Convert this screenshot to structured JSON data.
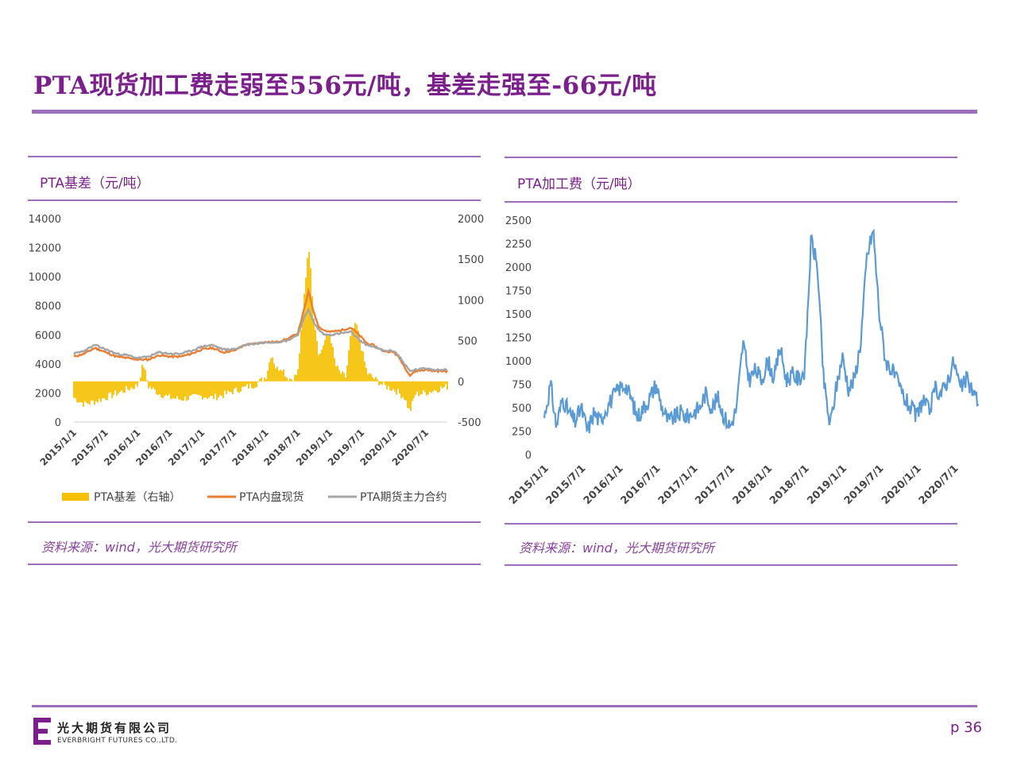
{
  "page": {
    "title": "PTA现货加工费走弱至556元/吨，基差走强至-66元/吨",
    "page_number": "p 36",
    "company_cn": "光大期货有限公司",
    "company_en": "EVERBRIGHT FUTURES CO.,LTD.",
    "brand_color": "#7b1f8c"
  },
  "left_panel": {
    "title": "PTA基差（元/吨）",
    "source": "资料来源：wind，光大期货研究所"
  },
  "right_panel": {
    "title": "PTA加工费（元/吨）",
    "source": "资料来源：wind，光大期货研究所"
  },
  "chart_data": [
    {
      "type": "bar+line",
      "title": "PTA基差（元/吨）",
      "x_tick_labels": [
        "2015/1/1",
        "2015/7/1",
        "2016/1/1",
        "2016/7/1",
        "2017/1/1",
        "2017/7/1",
        "2018/1/1",
        "2018/7/1",
        "2019/1/1",
        "2019/7/1",
        "2020/1/1",
        "2020/7/1"
      ],
      "x_range": [
        "2015/1/1",
        "2020/10/31"
      ],
      "y_left": {
        "ticks": [
          0,
          2000,
          4000,
          6000,
          8000,
          10000,
          12000,
          14000
        ],
        "range": [
          0,
          14000
        ]
      },
      "y_right": {
        "ticks": [
          -500,
          0,
          500,
          1000,
          1500,
          2000
        ],
        "range": [
          -500,
          2000
        ]
      },
      "legend_position": "bottom",
      "series": [
        {
          "name": "PTA基差（右轴）",
          "kind": "bar",
          "axis": "right",
          "color": "#f5c000",
          "points": [
            [
              "2015/1/1",
              -200
            ],
            [
              "2015/3/1",
              -280
            ],
            [
              "2015/5/1",
              -250
            ],
            [
              "2015/7/1",
              -200
            ],
            [
              "2015/9/1",
              -150
            ],
            [
              "2015/11/1",
              -100
            ],
            [
              "2016/1/1",
              -50
            ],
            [
              "2016/2/1",
              220
            ],
            [
              "2016/3/1",
              -60
            ],
            [
              "2016/5/1",
              -150
            ],
            [
              "2016/7/1",
              -200
            ],
            [
              "2016/9/1",
              -220
            ],
            [
              "2016/11/1",
              -200
            ],
            [
              "2017/1/1",
              -180
            ],
            [
              "2017/3/1",
              -200
            ],
            [
              "2017/5/1",
              -170
            ],
            [
              "2017/7/1",
              -120
            ],
            [
              "2017/9/1",
              -80
            ],
            [
              "2017/11/1",
              -40
            ],
            [
              "2018/1/1",
              60
            ],
            [
              "2018/2/1",
              350
            ],
            [
              "2018/3/1",
              150
            ],
            [
              "2018/4/1",
              180
            ],
            [
              "2018/5/1",
              50
            ],
            [
              "2018/6/1",
              30
            ],
            [
              "2018/7/1",
              100
            ],
            [
              "2018/8/1",
              900
            ],
            [
              "2018/9/1",
              1700
            ],
            [
              "2018/10/1",
              800
            ],
            [
              "2018/11/1",
              300
            ],
            [
              "2018/12/1",
              500
            ],
            [
              "2019/1/1",
              600
            ],
            [
              "2019/2/1",
              200
            ],
            [
              "2019/3/1",
              100
            ],
            [
              "2019/4/1",
              50
            ],
            [
              "2019/5/1",
              600
            ],
            [
              "2019/6/1",
              700
            ],
            [
              "2019/7/1",
              400
            ],
            [
              "2019/8/1",
              100
            ],
            [
              "2019/9/1",
              50
            ],
            [
              "2019/11/1",
              -50
            ],
            [
              "2020/1/1",
              -100
            ],
            [
              "2020/2/1",
              -150
            ],
            [
              "2020/3/1",
              -200
            ],
            [
              "2020/4/1",
              -380
            ],
            [
              "2020/5/1",
              -160
            ],
            [
              "2020/7/1",
              -140
            ],
            [
              "2020/9/1",
              -100
            ],
            [
              "2020/10/31",
              -66
            ]
          ]
        },
        {
          "name": "PTA内盘现货",
          "kind": "line",
          "axis": "left",
          "color": "#ed7d31",
          "points": [
            [
              "2015/1/1",
              4500
            ],
            [
              "2015/3/1",
              4700
            ],
            [
              "2015/5/1",
              5100
            ],
            [
              "2015/7/1",
              4800
            ],
            [
              "2015/9/1",
              4500
            ],
            [
              "2015/11/1",
              4400
            ],
            [
              "2016/1/1",
              4300
            ],
            [
              "2016/3/1",
              4300
            ],
            [
              "2016/5/1",
              4600
            ],
            [
              "2016/7/1",
              4500
            ],
            [
              "2016/9/1",
              4500
            ],
            [
              "2016/11/1",
              4700
            ],
            [
              "2017/1/1",
              5000
            ],
            [
              "2017/3/1",
              5100
            ],
            [
              "2017/5/1",
              4800
            ],
            [
              "2017/7/1",
              4900
            ],
            [
              "2017/9/1",
              5300
            ],
            [
              "2017/11/1",
              5400
            ],
            [
              "2018/1/1",
              5500
            ],
            [
              "2018/3/1",
              5500
            ],
            [
              "2018/5/1",
              5700
            ],
            [
              "2018/7/1",
              6100
            ],
            [
              "2018/8/1",
              7500
            ],
            [
              "2018/9/1",
              9000
            ],
            [
              "2018/10/1",
              7500
            ],
            [
              "2018/11/1",
              6500
            ],
            [
              "2018/12/1",
              6300
            ],
            [
              "2019/1/1",
              6200
            ],
            [
              "2019/3/1",
              6300
            ],
            [
              "2019/5/1",
              6500
            ],
            [
              "2019/7/1",
              5800
            ],
            [
              "2019/8/1",
              5400
            ],
            [
              "2019/9/1",
              5300
            ],
            [
              "2019/11/1",
              4900
            ],
            [
              "2020/1/1",
              4800
            ],
            [
              "2020/2/1",
              4400
            ],
            [
              "2020/3/1",
              3800
            ],
            [
              "2020/4/1",
              3200
            ],
            [
              "2020/5/1",
              3500
            ],
            [
              "2020/7/1",
              3600
            ],
            [
              "2020/9/1",
              3500
            ],
            [
              "2020/10/31",
              3500
            ]
          ]
        },
        {
          "name": "PTA期货主力合约",
          "kind": "line",
          "axis": "left",
          "color": "#a5a5a5",
          "points": [
            [
              "2015/1/1",
              4700
            ],
            [
              "2015/3/1",
              4900
            ],
            [
              "2015/5/1",
              5300
            ],
            [
              "2015/7/1",
              5000
            ],
            [
              "2015/9/1",
              4700
            ],
            [
              "2015/11/1",
              4600
            ],
            [
              "2016/1/1",
              4400
            ],
            [
              "2016/3/1",
              4500
            ],
            [
              "2016/5/1",
              4800
            ],
            [
              "2016/7/1",
              4700
            ],
            [
              "2016/9/1",
              4700
            ],
            [
              "2016/11/1",
              4900
            ],
            [
              "2017/1/1",
              5200
            ],
            [
              "2017/3/1",
              5300
            ],
            [
              "2017/5/1",
              5000
            ],
            [
              "2017/7/1",
              5000
            ],
            [
              "2017/9/1",
              5300
            ],
            [
              "2017/11/1",
              5400
            ],
            [
              "2018/1/1",
              5500
            ],
            [
              "2018/3/1",
              5500
            ],
            [
              "2018/5/1",
              5600
            ],
            [
              "2018/7/1",
              6000
            ],
            [
              "2018/8/1",
              7000
            ],
            [
              "2018/9/1",
              7800
            ],
            [
              "2018/10/1",
              6800
            ],
            [
              "2018/11/1",
              6300
            ],
            [
              "2018/12/1",
              6000
            ],
            [
              "2019/1/1",
              6000
            ],
            [
              "2019/3/1",
              6100
            ],
            [
              "2019/5/1",
              6200
            ],
            [
              "2019/7/1",
              5500
            ],
            [
              "2019/8/1",
              5300
            ],
            [
              "2019/9/1",
              5200
            ],
            [
              "2019/11/1",
              4900
            ],
            [
              "2020/1/1",
              4900
            ],
            [
              "2020/2/1",
              4500
            ],
            [
              "2020/3/1",
              4000
            ],
            [
              "2020/4/1",
              3500
            ],
            [
              "2020/5/1",
              3600
            ],
            [
              "2020/7/1",
              3700
            ],
            [
              "2020/9/1",
              3600
            ],
            [
              "2020/10/31",
              3600
            ]
          ]
        }
      ]
    },
    {
      "type": "line",
      "title": "PTA加工费（元/吨）",
      "x_tick_labels": [
        "2015/1/1",
        "2015/7/1",
        "2016/1/1",
        "2016/7/1",
        "2017/1/1",
        "2017/7/1",
        "2018/1/1",
        "2018/7/1",
        "2019/1/1",
        "2019/7/1",
        "2020/1/1",
        "2020/7/1"
      ],
      "x_range": [
        "2015/1/1",
        "2020/10/31"
      ],
      "y": {
        "ticks": [
          0,
          250,
          500,
          750,
          1000,
          1250,
          1500,
          1750,
          2000,
          2250,
          2500
        ],
        "range": [
          0,
          2500
        ]
      },
      "series": [
        {
          "name": "PTA加工费",
          "kind": "line",
          "color": "#5b9bd5",
          "points": [
            [
              "2015/1/1",
              400
            ],
            [
              "2015/2/1",
              750
            ],
            [
              "2015/3/1",
              300
            ],
            [
              "2015/4/1",
              600
            ],
            [
              "2015/5/1",
              450
            ],
            [
              "2015/6/1",
              350
            ],
            [
              "2015/7/1",
              500
            ],
            [
              "2015/8/1",
              250
            ],
            [
              "2015/9/1",
              450
            ],
            [
              "2015/10/1",
              350
            ],
            [
              "2015/11/1",
              500
            ],
            [
              "2015/12/1",
              600
            ],
            [
              "2016/1/1",
              700
            ],
            [
              "2016/2/1",
              750
            ],
            [
              "2016/3/1",
              600
            ],
            [
              "2016/4/1",
              400
            ],
            [
              "2016/5/1",
              500
            ],
            [
              "2016/6/1",
              600
            ],
            [
              "2016/7/1",
              750
            ],
            [
              "2016/8/1",
              500
            ],
            [
              "2016/9/1",
              350
            ],
            [
              "2016/10/1",
              400
            ],
            [
              "2016/11/1",
              450
            ],
            [
              "2016/12/1",
              400
            ],
            [
              "2017/1/1",
              450
            ],
            [
              "2017/2/1",
              500
            ],
            [
              "2017/3/1",
              650
            ],
            [
              "2017/4/1",
              500
            ],
            [
              "2017/5/1",
              600
            ],
            [
              "2017/6/1",
              400
            ],
            [
              "2017/7/1",
              300
            ],
            [
              "2017/8/1",
              500
            ],
            [
              "2017/9/1",
              1200
            ],
            [
              "2017/10/1",
              800
            ],
            [
              "2017/11/1",
              900
            ],
            [
              "2017/12/1",
              800
            ],
            [
              "2018/1/1",
              1000
            ],
            [
              "2018/2/1",
              800
            ],
            [
              "2018/3/1",
              1150
            ],
            [
              "2018/4/1",
              800
            ],
            [
              "2018/5/1",
              850
            ],
            [
              "2018/6/1",
              800
            ],
            [
              "2018/7/1",
              900
            ],
            [
              "2018/8/1",
              2300
            ],
            [
              "2018/9/1",
              2000
            ],
            [
              "2018/10/1",
              800
            ],
            [
              "2018/11/1",
              300
            ],
            [
              "2018/12/1",
              700
            ],
            [
              "2019/1/1",
              1050
            ],
            [
              "2019/2/1",
              700
            ],
            [
              "2019/3/1",
              800
            ],
            [
              "2019/4/1",
              1200
            ],
            [
              "2019/5/1",
              2100
            ],
            [
              "2019/6/1",
              2400
            ],
            [
              "2019/7/1",
              1500
            ],
            [
              "2019/8/1",
              1000
            ],
            [
              "2019/9/1",
              900
            ],
            [
              "2019/10/1",
              750
            ],
            [
              "2019/11/1",
              600
            ],
            [
              "2019/12/1",
              500
            ],
            [
              "2020/1/1",
              400
            ],
            [
              "2020/2/1",
              600
            ],
            [
              "2020/3/1",
              450
            ],
            [
              "2020/4/1",
              700
            ],
            [
              "2020/5/1",
              650
            ],
            [
              "2020/6/1",
              800
            ],
            [
              "2020/7/1",
              1000
            ],
            [
              "2020/8/1",
              700
            ],
            [
              "2020/9/1",
              800
            ],
            [
              "2020/10/31",
              556
            ]
          ]
        }
      ]
    }
  ]
}
